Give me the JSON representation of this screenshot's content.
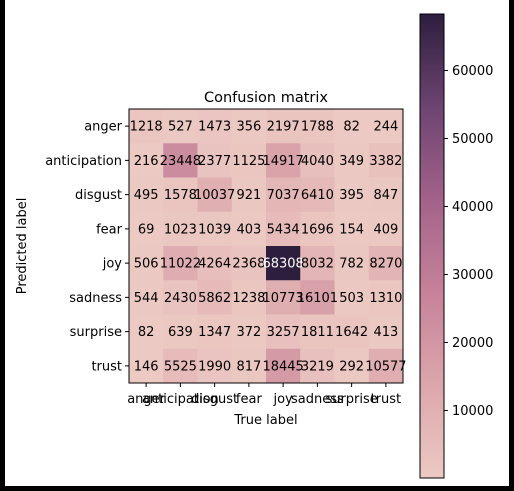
{
  "chart_data": {
    "type": "heatmap",
    "title": "Confusion matrix",
    "xlabel": "True label",
    "ylabel": "Predicted label",
    "x_categories": [
      "anger",
      "anticipation",
      "disgust",
      "fear",
      "joy",
      "sadness",
      "surprise",
      "trust"
    ],
    "y_categories": [
      "anger",
      "anticipation",
      "disgust",
      "fear",
      "joy",
      "sadness",
      "surprise",
      "trust"
    ],
    "values": [
      [
        1218,
        527,
        1473,
        356,
        2197,
        1788,
        82,
        244
      ],
      [
        216,
        23448,
        2377,
        1125,
        14917,
        4040,
        349,
        3382
      ],
      [
        495,
        1578,
        10037,
        921,
        7037,
        6410,
        395,
        847
      ],
      [
        69,
        1023,
        1039,
        403,
        5434,
        1696,
        154,
        409
      ],
      [
        506,
        11022,
        4264,
        2368,
        68308,
        8032,
        782,
        8270
      ],
      [
        544,
        2430,
        5862,
        1238,
        10773,
        16101,
        503,
        1310
      ],
      [
        82,
        639,
        1347,
        372,
        3257,
        1811,
        1642,
        413
      ],
      [
        146,
        5525,
        1990,
        817,
        18445,
        3219,
        292,
        10577
      ]
    ],
    "colorbar": {
      "ticks": [
        10000,
        20000,
        30000,
        40000,
        50000,
        60000
      ],
      "range": [
        69,
        68308
      ]
    },
    "colors": {
      "low": "#ecc9c3",
      "high": "#2d1e3e"
    }
  }
}
